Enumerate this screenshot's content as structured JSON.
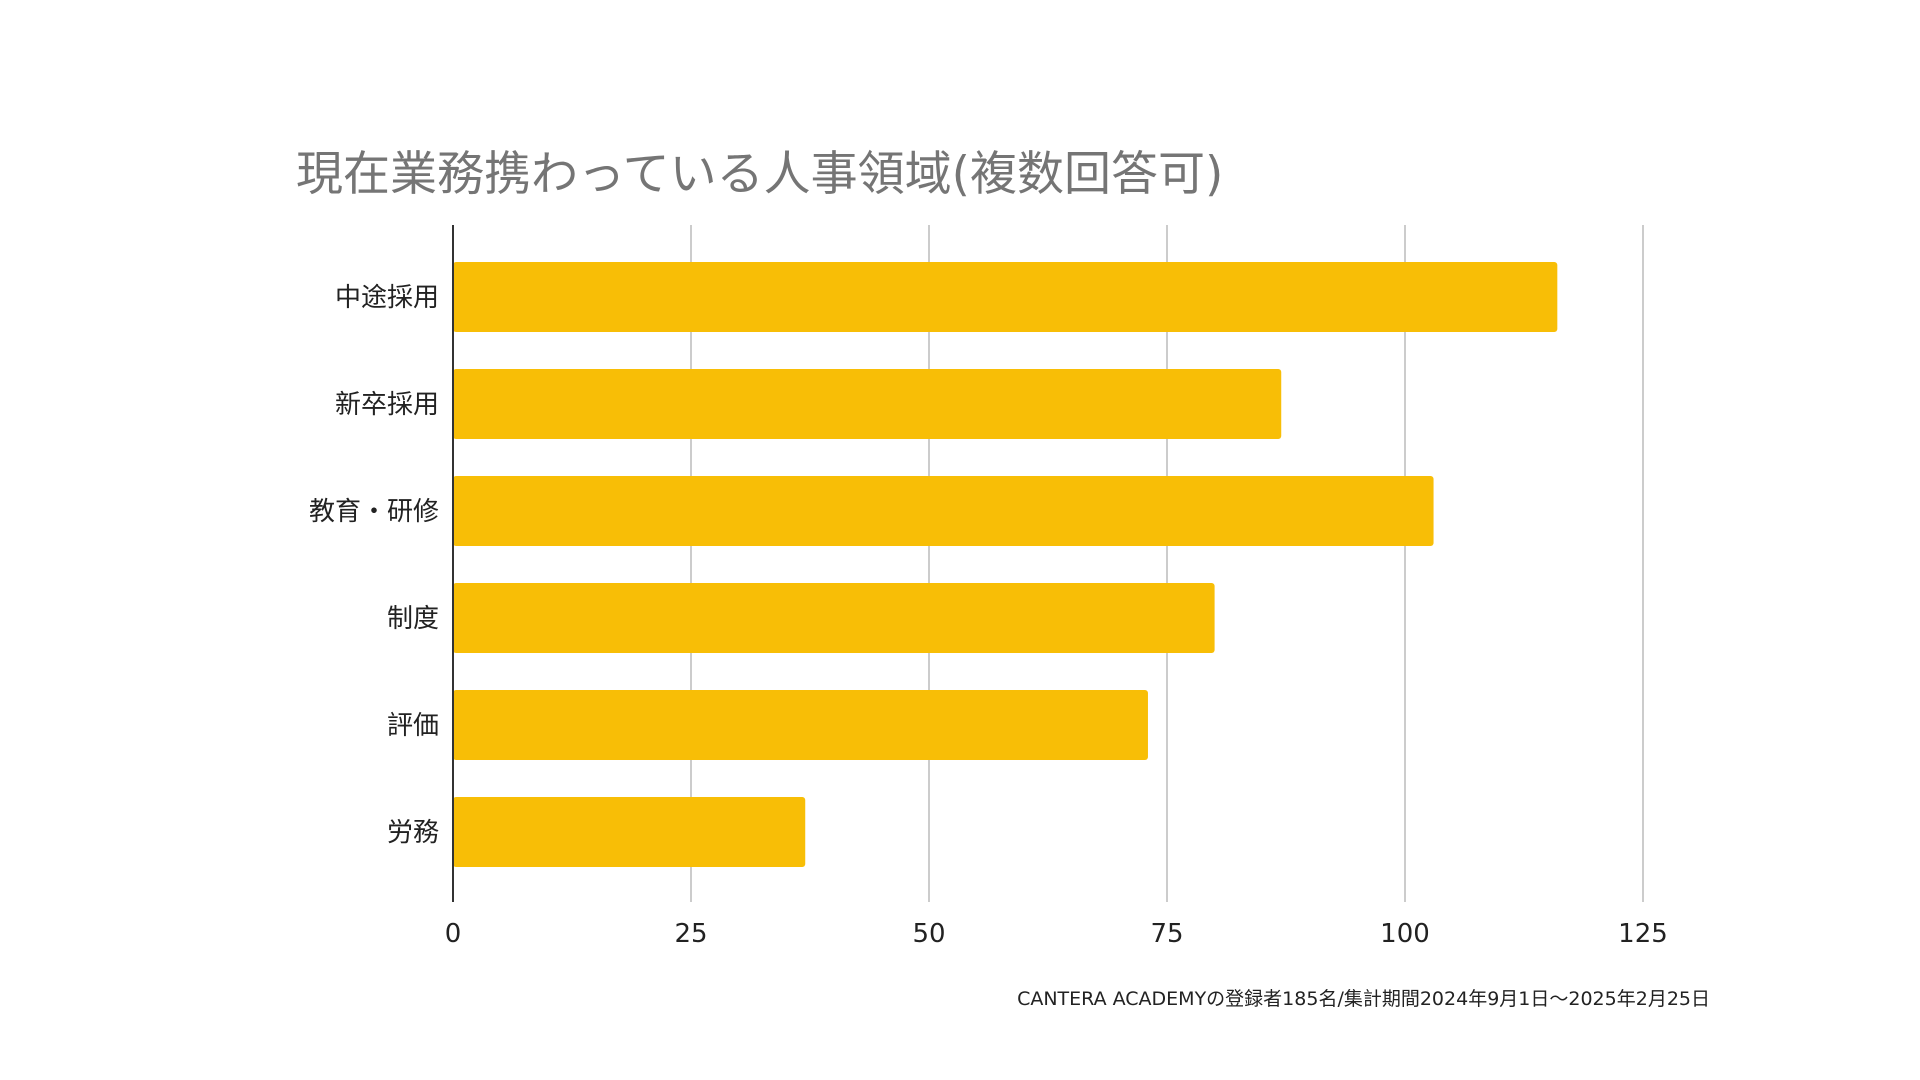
{
  "chart_data": {
    "type": "bar",
    "orientation": "horizontal",
    "title": "現在業務携わっている人事領域(複数回答可)",
    "categories": [
      "中途採用",
      "新卒採用",
      "教育・研修",
      "制度",
      "評価",
      "労務"
    ],
    "values": [
      116,
      87,
      103,
      80,
      73,
      37
    ],
    "xlabel": "",
    "ylabel": "",
    "xlim": [
      0,
      125
    ],
    "xticks": [
      "0",
      "25",
      "50",
      "75",
      "100",
      "125"
    ],
    "xtick_values": [
      0,
      25,
      50,
      75,
      100,
      125
    ],
    "grid": true,
    "legend": "none",
    "bar_color": "#F8BE06",
    "gridline_color": "#CCCCCC",
    "axis_color": "#333333"
  },
  "footnote": "CANTERA ACADEMYの登録者185名/集計期間2024年9月1日〜2025年2月25日"
}
